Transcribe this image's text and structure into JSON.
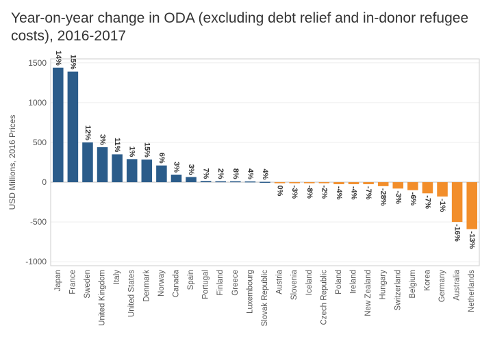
{
  "chart_data": {
    "type": "bar",
    "title": "Year-on-year change in ODA (excluding debt relief and in-donor refugee costs), 2016-2017",
    "xlabel": "",
    "ylabel": "USD Millions, 2016 Prices",
    "ylim": [
      -1050,
      1550
    ],
    "yticks": [
      -1000,
      -500,
      0,
      500,
      1000,
      1500
    ],
    "yticks_labels": [
      "-1000",
      "-500",
      "0",
      "500",
      "1000",
      "1500"
    ],
    "categories": [
      "Japan",
      "France",
      "Sweden",
      "United Kingdom",
      "Italy",
      "United States",
      "Denmark",
      "Norway",
      "Canada",
      "Spain",
      "Portugal",
      "Finland",
      "Greece",
      "Luxembourg",
      "Slovak Republic",
      "Austria",
      "Slovenia",
      "Iceland",
      "Czech Republic",
      "Poland",
      "Ireland",
      "New Zealand",
      "Hungary",
      "Switzerland",
      "Belgium",
      "Korea",
      "Germany",
      "Australia",
      "Netherlands"
    ],
    "values": [
      1440,
      1390,
      500,
      440,
      350,
      290,
      285,
      210,
      95,
      65,
      15,
      12,
      12,
      10,
      5,
      -5,
      -6,
      -7,
      -10,
      -25,
      -25,
      -25,
      -50,
      -80,
      -100,
      -140,
      -180,
      -500,
      -590
    ],
    "data_labels": [
      "14%",
      "15%",
      "12%",
      "3%",
      "11%",
      "1%",
      "15%",
      "6%",
      "3%",
      "3%",
      "7%",
      "2%",
      "8%",
      "4%",
      "4%",
      "0%",
      "-3%",
      "-8%",
      "-2%",
      "-4%",
      "-4%",
      "-7%",
      "-28%",
      "-3%",
      "-6%",
      "-7%",
      "-1%",
      "-16%",
      "-13%"
    ],
    "colors": {
      "positive": "#2b5c8a",
      "negative": "#f28e2b"
    },
    "grid": true
  }
}
